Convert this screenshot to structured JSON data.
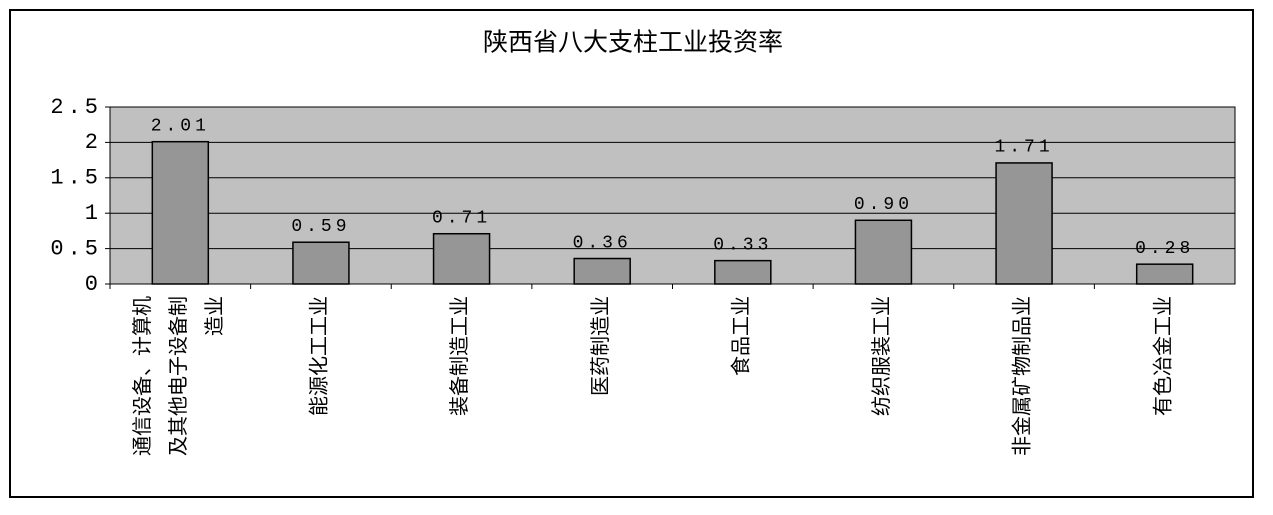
{
  "chart_data": {
    "type": "bar",
    "title": "陕西省八大支柱工业投资率",
    "categories": [
      "通信设备、计算机及其他电子设备制造业",
      "能源化工工业",
      "装备制造工业",
      "医药制造业",
      "食品工业",
      "纺织服装工业",
      "非金属矿物制品业",
      "有色冶金工业"
    ],
    "values": [
      2.01,
      0.59,
      0.71,
      0.36,
      0.33,
      0.9,
      1.71,
      0.28
    ],
    "value_labels": [
      "2.01",
      "0.59",
      "0.71",
      "0.36",
      "0.33",
      "0.90",
      "1.71",
      "0.28"
    ],
    "color": "#969696",
    "plot_background": "#c0c0c0",
    "ylim": [
      0,
      2.5
    ],
    "yticks": [
      0,
      0.5,
      1,
      1.5,
      2,
      2.5
    ],
    "grid": true
  }
}
